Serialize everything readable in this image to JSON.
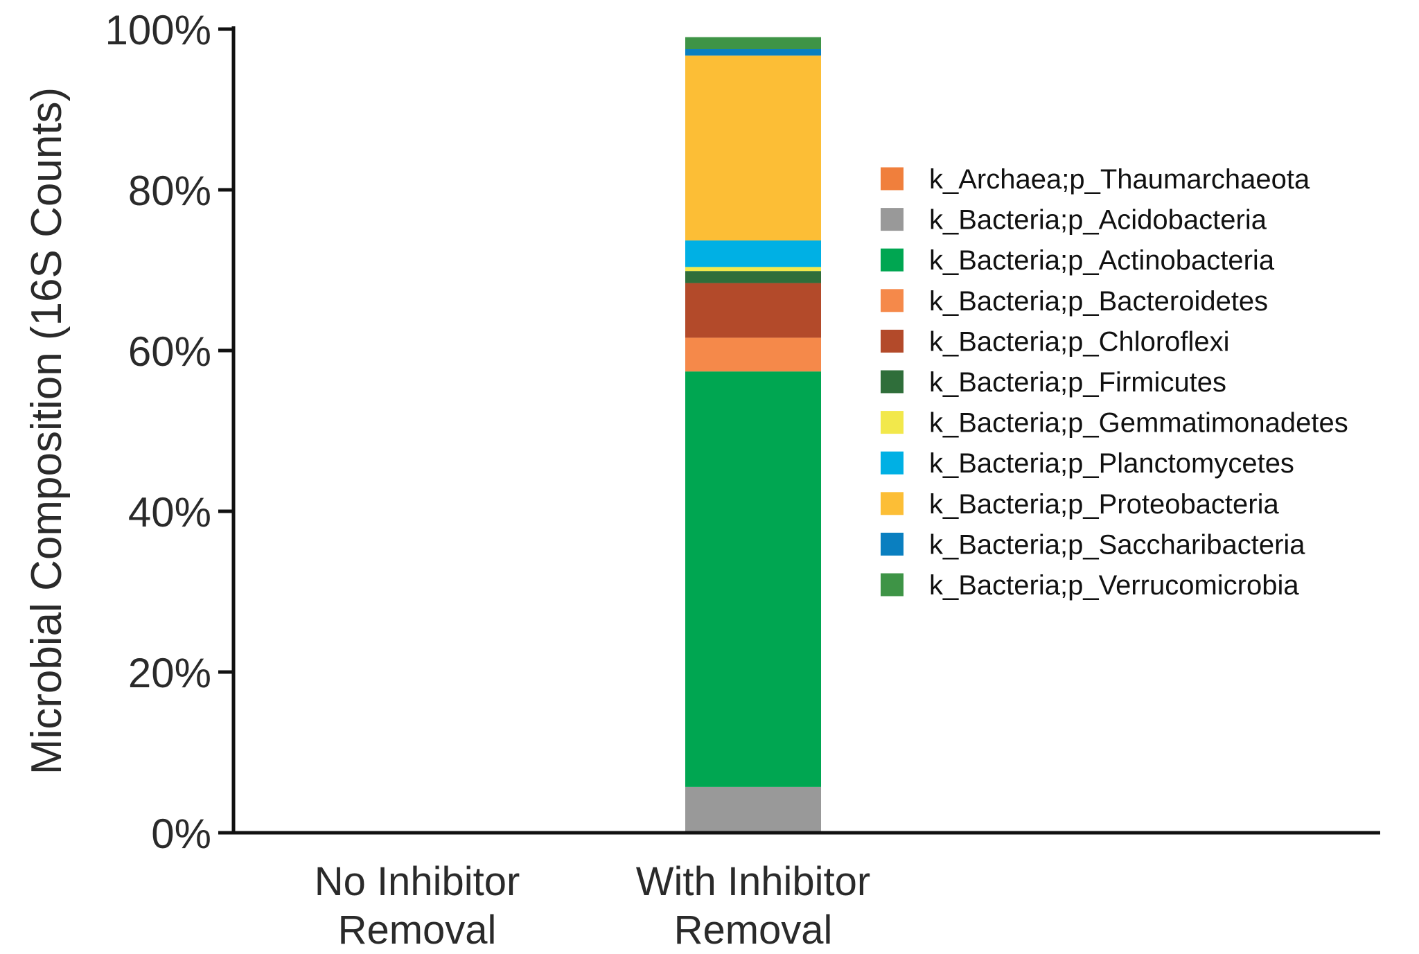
{
  "chart_data": {
    "type": "bar",
    "stacked": true,
    "title": "",
    "xlabel": "",
    "ylabel": "Microbial Composition (16S Counts)",
    "ylim": [
      0,
      100
    ],
    "yticks": [
      {
        "value": 0,
        "label": "0%"
      },
      {
        "value": 20,
        "label": "20%"
      },
      {
        "value": 40,
        "label": "40%"
      },
      {
        "value": 60,
        "label": "60%"
      },
      {
        "value": 80,
        "label": "80%"
      },
      {
        "value": 100,
        "label": "100%"
      }
    ],
    "categories": [
      {
        "lines": [
          "No Inhibitor",
          "Removal"
        ]
      },
      {
        "lines": [
          "With Inhibitor",
          "Removal"
        ]
      }
    ],
    "legend_position": "right",
    "grid": false,
    "series": [
      {
        "name": "k_Archaea;p_Thaumarchaeota",
        "color": "#f07f3c",
        "values": [
          0,
          0.0
        ]
      },
      {
        "name": "k_Bacteria;p_Acidobacteria",
        "color": "#999999",
        "values": [
          0,
          5.7
        ]
      },
      {
        "name": "k_Bacteria;p_Actinobacteria",
        "color": "#00a651",
        "values": [
          0,
          51.7
        ]
      },
      {
        "name": "k_Bacteria;p_Bacteroidetes",
        "color": "#f5894a",
        "values": [
          0,
          4.2
        ]
      },
      {
        "name": "k_Bacteria;p_Chloroflexi",
        "color": "#b34a2a",
        "values": [
          0,
          6.8
        ]
      },
      {
        "name": "k_Bacteria;p_Firmicutes",
        "color": "#2f6e3a",
        "values": [
          0,
          1.5
        ]
      },
      {
        "name": "k_Bacteria;p_Gemmatimonadetes",
        "color": "#f2e84b",
        "values": [
          0,
          0.5
        ]
      },
      {
        "name": "k_Bacteria;p_Planctomycetes",
        "color": "#00b0e4",
        "values": [
          0,
          3.3
        ]
      },
      {
        "name": "k_Bacteria;p_Proteobacteria",
        "color": "#fcbe36",
        "values": [
          0,
          23.0
        ]
      },
      {
        "name": "k_Bacteria;p_Saccharibacteria",
        "color": "#0a7fc0",
        "values": [
          0,
          0.8
        ]
      },
      {
        "name": "k_Bacteria;p_Verrucomicrobia",
        "color": "#3e9446",
        "values": [
          0,
          1.5
        ]
      }
    ]
  }
}
